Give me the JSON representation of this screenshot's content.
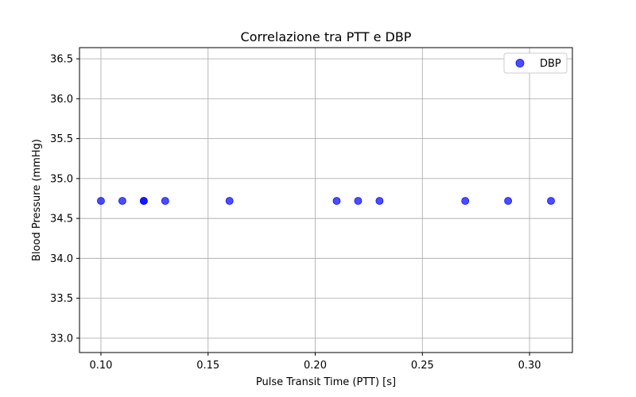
{
  "chart_data": {
    "type": "scatter",
    "title": "Correlazione tra PTT e DBP",
    "xlabel": "Pulse Transit Time (PTT) [s]",
    "ylabel": "Blood Pressure (mmHg)",
    "xlim": [
      0.09,
      0.32
    ],
    "ylim": [
      32.82,
      36.64
    ],
    "x_ticks": [
      0.1,
      0.15,
      0.2,
      0.25,
      0.3
    ],
    "x_tick_labels": [
      "0.10",
      "0.15",
      "0.20",
      "0.25",
      "0.30"
    ],
    "y_ticks": [
      33.0,
      33.5,
      34.0,
      34.5,
      35.0,
      35.5,
      36.0,
      36.5
    ],
    "y_tick_labels": [
      "33.0",
      "33.5",
      "34.0",
      "34.5",
      "35.0",
      "35.5",
      "36.0",
      "36.5"
    ],
    "grid": true,
    "legend_position": "top-right",
    "series": [
      {
        "name": "DBP",
        "color": "#0000ff",
        "points": [
          {
            "x": 0.1,
            "y": 34.72
          },
          {
            "x": 0.11,
            "y": 34.72
          },
          {
            "x": 0.12,
            "y": 34.72
          },
          {
            "x": 0.12,
            "y": 34.72
          },
          {
            "x": 0.13,
            "y": 34.72
          },
          {
            "x": 0.16,
            "y": 34.72
          },
          {
            "x": 0.21,
            "y": 34.72
          },
          {
            "x": 0.22,
            "y": 34.72
          },
          {
            "x": 0.23,
            "y": 34.72
          },
          {
            "x": 0.27,
            "y": 34.72
          },
          {
            "x": 0.29,
            "y": 34.72
          },
          {
            "x": 0.31,
            "y": 34.72
          }
        ]
      }
    ]
  }
}
